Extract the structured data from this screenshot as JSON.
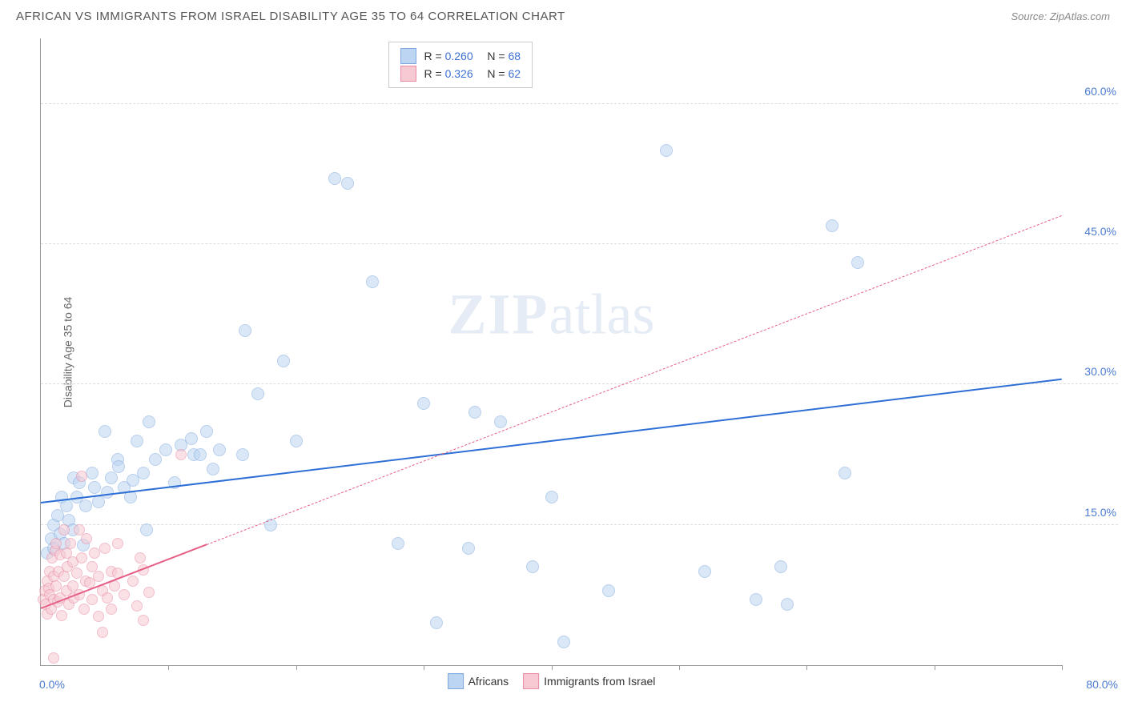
{
  "header": {
    "title": "AFRICAN VS IMMIGRANTS FROM ISRAEL DISABILITY AGE 35 TO 64 CORRELATION CHART",
    "source_prefix": "Source: ",
    "source_name": "ZipAtlas.com"
  },
  "watermark": {
    "zip": "ZIP",
    "atlas": "atlas"
  },
  "chart": {
    "type": "scatter",
    "y_axis_title": "Disability Age 35 to 64",
    "xlim": [
      0,
      80
    ],
    "ylim": [
      0,
      67
    ],
    "x_ticks": [
      0,
      10,
      20,
      30,
      40,
      50,
      60,
      70,
      80
    ],
    "y_gridlines": [
      15,
      30,
      45,
      60
    ],
    "y_tick_labels": [
      "15.0%",
      "30.0%",
      "45.0%",
      "60.0%"
    ],
    "x_min_label": "0.0%",
    "x_max_label": "80.0%",
    "background_color": "#ffffff",
    "grid_color": "#dddddd",
    "axis_color": "#999999",
    "series": {
      "africans": {
        "label": "Africans",
        "marker_fill": "#bcd5f2",
        "marker_stroke": "#7fa8dd",
        "marker_fill_opacity": 0.55,
        "marker_size": 16,
        "trend_color": "#2e6fd6",
        "trend_width": 2.5,
        "trend_dash": "solid",
        "trend": {
          "x1": 0,
          "y1": 17.3,
          "x2": 80,
          "y2": 30.5
        },
        "R": "0.260",
        "N": "68",
        "points": [
          [
            0.5,
            12
          ],
          [
            0.8,
            13.5
          ],
          [
            1,
            12.5
          ],
          [
            1,
            15
          ],
          [
            1.3,
            16
          ],
          [
            1.5,
            14
          ],
          [
            1.6,
            18
          ],
          [
            1.8,
            13
          ],
          [
            2,
            17
          ],
          [
            2.2,
            15.5
          ],
          [
            2.5,
            14.5
          ],
          [
            2.6,
            20
          ],
          [
            2.8,
            18
          ],
          [
            3,
            19.5
          ],
          [
            3.3,
            12.8
          ],
          [
            3.5,
            17
          ],
          [
            4,
            20.5
          ],
          [
            4.2,
            19
          ],
          [
            4.5,
            17.5
          ],
          [
            5,
            25
          ],
          [
            5.2,
            18.5
          ],
          [
            5.5,
            20
          ],
          [
            6,
            22
          ],
          [
            6.5,
            19
          ],
          [
            7,
            18
          ],
          [
            7.5,
            24
          ],
          [
            8,
            20.5
          ],
          [
            8.5,
            26
          ],
          [
            9,
            22
          ],
          [
            9.8,
            23
          ],
          [
            10.5,
            19.5
          ],
          [
            11,
            23.5
          ],
          [
            12,
            22.5
          ],
          [
            13,
            25
          ],
          [
            13.5,
            21
          ],
          [
            14,
            23
          ],
          [
            15.8,
            22.5
          ],
          [
            16,
            35.8
          ],
          [
            17,
            29
          ],
          [
            18,
            15
          ],
          [
            19,
            32.5
          ],
          [
            20,
            24
          ],
          [
            23,
            52
          ],
          [
            24,
            51.5
          ],
          [
            26,
            41
          ],
          [
            28,
            13
          ],
          [
            30,
            28
          ],
          [
            31,
            4.5
          ],
          [
            33.5,
            12.5
          ],
          [
            34,
            27
          ],
          [
            36,
            26
          ],
          [
            38.5,
            10.5
          ],
          [
            40,
            18
          ],
          [
            41,
            2.5
          ],
          [
            44.5,
            8
          ],
          [
            49,
            55
          ],
          [
            52,
            10
          ],
          [
            56,
            7
          ],
          [
            58,
            10.5
          ],
          [
            58.5,
            6.5
          ],
          [
            62,
            47
          ],
          [
            63,
            20.5
          ],
          [
            64,
            43
          ],
          [
            8.3,
            14.5
          ],
          [
            11.8,
            24.2
          ],
          [
            12.5,
            22.5
          ],
          [
            7.2,
            19.8
          ],
          [
            6.1,
            21.2
          ]
        ]
      },
      "israel": {
        "label": "Immigrants from Israel",
        "marker_fill": "#f6c9d3",
        "marker_stroke": "#e98ba3",
        "marker_fill_opacity": 0.55,
        "marker_size": 14,
        "trend_color": "#e65f86",
        "trend_width": 2,
        "trend_dash": "solid",
        "trend_solid_end_x": 13,
        "trend_dash_continue": "4,6",
        "trend": {
          "x1": 0,
          "y1": 6,
          "x2": 80,
          "y2": 48
        },
        "R": "0.326",
        "N": "62",
        "points": [
          [
            0.2,
            7
          ],
          [
            0.3,
            8
          ],
          [
            0.4,
            6.5
          ],
          [
            0.5,
            5.5
          ],
          [
            0.5,
            9
          ],
          [
            0.6,
            8.2
          ],
          [
            0.7,
            7.5
          ],
          [
            0.7,
            10
          ],
          [
            0.8,
            6
          ],
          [
            0.9,
            11.5
          ],
          [
            1,
            7
          ],
          [
            1,
            9.5
          ],
          [
            1.1,
            12.2
          ],
          [
            1.2,
            8.5
          ],
          [
            1.2,
            13
          ],
          [
            1.3,
            6.8
          ],
          [
            1.4,
            10
          ],
          [
            1.5,
            7.2
          ],
          [
            1.5,
            11.8
          ],
          [
            1.6,
            5.3
          ],
          [
            1.8,
            9.5
          ],
          [
            1.8,
            14.5
          ],
          [
            2,
            8
          ],
          [
            2,
            12
          ],
          [
            2.1,
            10.5
          ],
          [
            2.2,
            6.5
          ],
          [
            2.3,
            13
          ],
          [
            2.5,
            8.5
          ],
          [
            2.5,
            11
          ],
          [
            2.6,
            7.2
          ],
          [
            2.8,
            9.8
          ],
          [
            3,
            7.5
          ],
          [
            3,
            14.5
          ],
          [
            3.2,
            11.5
          ],
          [
            3.4,
            6
          ],
          [
            3.5,
            9
          ],
          [
            3.6,
            13.5
          ],
          [
            3.8,
            8.8
          ],
          [
            4,
            7
          ],
          [
            4,
            10.5
          ],
          [
            4.2,
            12
          ],
          [
            4.5,
            5.2
          ],
          [
            4.5,
            9.5
          ],
          [
            4.8,
            8
          ],
          [
            5,
            12.5
          ],
          [
            5.2,
            7.2
          ],
          [
            5.5,
            10
          ],
          [
            5.5,
            6
          ],
          [
            5.8,
            8.5
          ],
          [
            6,
            9.8
          ],
          [
            6,
            13
          ],
          [
            6.5,
            7.5
          ],
          [
            7.2,
            9
          ],
          [
            7.5,
            6.3
          ],
          [
            8,
            10.2
          ],
          [
            8,
            4.8
          ],
          [
            8.5,
            7.8
          ],
          [
            3.2,
            20.2
          ],
          [
            4.8,
            3.5
          ],
          [
            11,
            22.5
          ],
          [
            7.8,
            11.5
          ],
          [
            1,
            0.8
          ]
        ]
      }
    }
  }
}
